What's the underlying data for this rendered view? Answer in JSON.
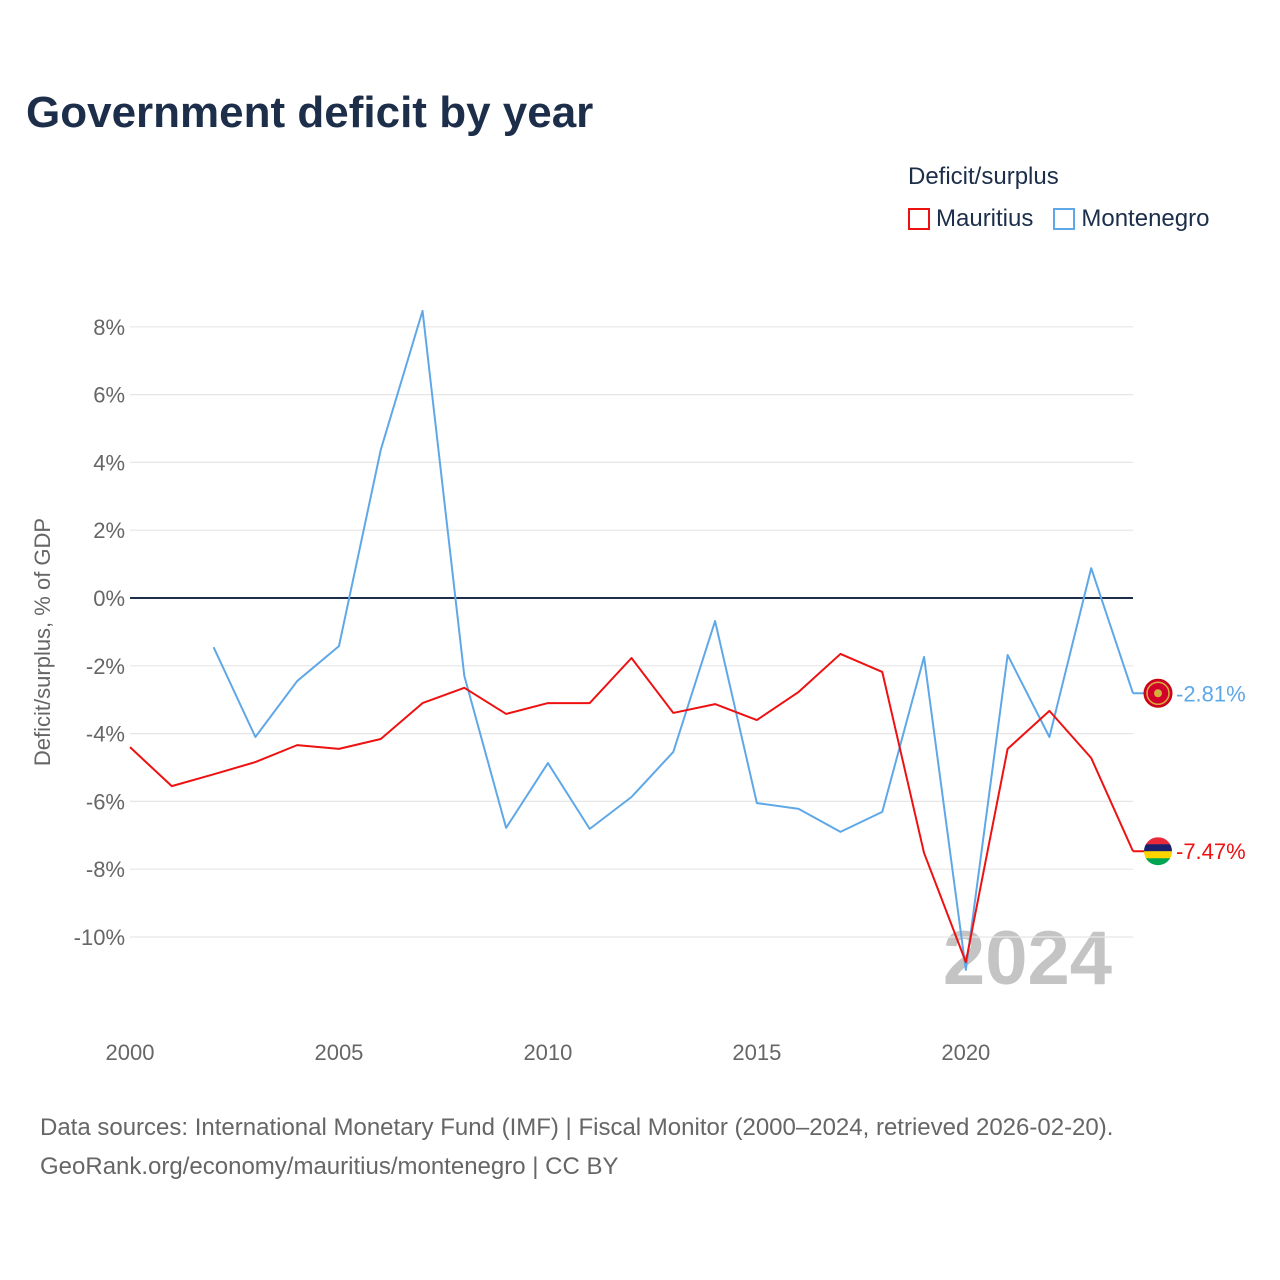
{
  "title": "Government deficit by year",
  "legend": {
    "title": "Deficit/surplus",
    "items": [
      {
        "name": "Mauritius",
        "color": "#ee1111"
      },
      {
        "name": "Montenegro",
        "color": "#5fa8e8"
      }
    ]
  },
  "watermark_year": "2024",
  "source_line1": "Data sources: International Monetary Fund (IMF) | Fiscal Monitor (2000–2024, retrieved 2026-02-20).",
  "source_line2": "GeoRank.org/economy/mauritius/montenegro | CC BY",
  "chart_data": {
    "type": "line",
    "title": "Government deficit by year",
    "xlabel": "",
    "ylabel": "Deficit/surplus, % of GDP",
    "xlim": [
      2000,
      2024
    ],
    "ylim": [
      -12,
      9
    ],
    "x_ticks": [
      2000,
      2005,
      2010,
      2015,
      2020
    ],
    "x_tick_labels": [
      "2000",
      "2005",
      "2010",
      "2015",
      "2020"
    ],
    "y_ticks": [
      8,
      6,
      4,
      2,
      0,
      -2,
      -4,
      -6,
      -8,
      -10
    ],
    "y_tick_labels": [
      "8%",
      "6%",
      "4%",
      "2%",
      "0%",
      "-2%",
      "-4%",
      "-6%",
      "-8%",
      "-10%"
    ],
    "grid": true,
    "legend_position": "top-right",
    "series": [
      {
        "name": "Mauritius",
        "color": "#ee1111",
        "end_label": "-7.47%",
        "x": [
          2000,
          2001,
          2002,
          2003,
          2004,
          2005,
          2006,
          2007,
          2008,
          2009,
          2010,
          2011,
          2012,
          2013,
          2014,
          2015,
          2016,
          2017,
          2018,
          2019,
          2020,
          2021,
          2022,
          2023,
          2024
        ],
        "values": [
          -4.4,
          -5.55,
          -5.2,
          -4.84,
          -4.34,
          -4.45,
          -4.16,
          -3.1,
          -2.65,
          -3.42,
          -3.1,
          -3.1,
          -1.77,
          -3.39,
          -3.13,
          -3.6,
          -2.77,
          -1.65,
          -2.18,
          -7.52,
          -10.74,
          -4.45,
          -3.33,
          -4.72,
          -7.47
        ]
      },
      {
        "name": "Montenegro",
        "color": "#5fa8e8",
        "end_label": "-2.81%",
        "x": [
          2002,
          2003,
          2004,
          2005,
          2006,
          2007,
          2008,
          2009,
          2010,
          2011,
          2012,
          2013,
          2014,
          2015,
          2016,
          2017,
          2018,
          2019,
          2020,
          2021,
          2022,
          2023,
          2024
        ],
        "values": [
          -1.45,
          -4.1,
          -2.45,
          -1.42,
          4.37,
          8.47,
          -2.3,
          -6.78,
          -4.87,
          -6.81,
          -5.87,
          -4.54,
          -0.68,
          -6.05,
          -6.22,
          -6.9,
          -6.31,
          -1.74,
          -10.97,
          -1.68,
          -4.1,
          0.88,
          -2.81
        ]
      }
    ]
  }
}
